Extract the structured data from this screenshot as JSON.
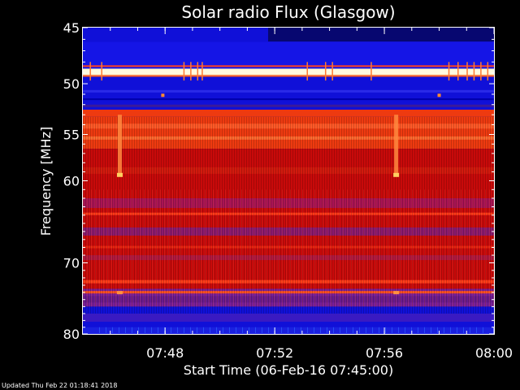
{
  "chart_data": {
    "type": "heatmap",
    "title": "Solar radio Flux (Glasgow)",
    "xlabel": "Start Time (06-Feb-16 07:45:00)",
    "ylabel": "Frequency [MHz]",
    "x_range": [
      "07:45",
      "08:00"
    ],
    "y_range_mhz": [
      45,
      80
    ],
    "y_scale": "log",
    "x_ticks": [
      "07:48",
      "07:52",
      "07:56",
      "08:00"
    ],
    "y_ticks": [
      45,
      50,
      55,
      60,
      70,
      80
    ],
    "colors": {
      "background": "#000000",
      "axes": "#ffffff",
      "low": "#0000cc",
      "mid": "#cc0000",
      "high": "#fff6c0"
    },
    "bands": [
      {
        "f_min": 45,
        "f_max": 46.2,
        "level": "low"
      },
      {
        "f_min": 46.2,
        "f_max": 48.6,
        "level": "low"
      },
      {
        "f_min": 48.6,
        "f_max": 49.2,
        "level": "high"
      },
      {
        "f_min": 49.2,
        "f_max": 52.5,
        "level": "low"
      },
      {
        "f_min": 52.5,
        "f_max": 53.2,
        "level": "medium-high"
      },
      {
        "f_min": 53.2,
        "f_max": 56.5,
        "level": "medium-high"
      },
      {
        "f_min": 56.5,
        "f_max": 63,
        "level": "medium"
      },
      {
        "f_min": 63,
        "f_max": 73.5,
        "level": "medium"
      },
      {
        "f_min": 73.5,
        "f_max": 76,
        "level": "medium-low"
      },
      {
        "f_min": 76,
        "f_max": 80,
        "level": "low"
      }
    ],
    "bursts": [
      {
        "time": "07:46:20",
        "f_min": 53,
        "f_max": 59.3
      },
      {
        "time": "07:56:25",
        "f_min": 53,
        "f_max": 59.3
      }
    ]
  },
  "footer": {
    "updated": "Updated Thu Feb 22 01:18:41 2018"
  }
}
